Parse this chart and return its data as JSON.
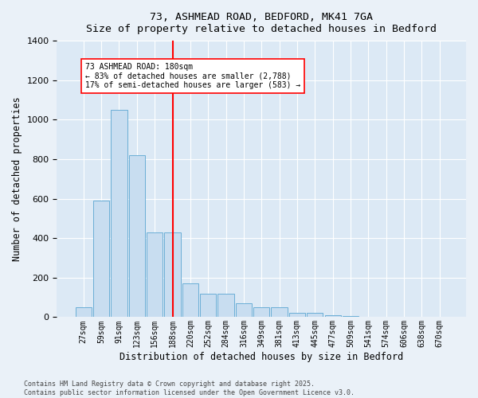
{
  "title_line1": "73, ASHMEAD ROAD, BEDFORD, MK41 7GA",
  "title_line2": "Size of property relative to detached houses in Bedford",
  "xlabel": "Distribution of detached houses by size in Bedford",
  "ylabel": "Number of detached properties",
  "bar_color": "#c8ddf0",
  "bar_edge_color": "#6aaed6",
  "background_color": "#dce9f5",
  "grid_color": "#ffffff",
  "categories": [
    "27sqm",
    "59sqm",
    "91sqm",
    "123sqm",
    "156sqm",
    "188sqm",
    "220sqm",
    "252sqm",
    "284sqm",
    "316sqm",
    "349sqm",
    "381sqm",
    "413sqm",
    "445sqm",
    "477sqm",
    "509sqm",
    "541sqm",
    "574sqm",
    "606sqm",
    "638sqm",
    "670sqm"
  ],
  "values": [
    50,
    590,
    1050,
    820,
    430,
    430,
    170,
    120,
    120,
    70,
    50,
    50,
    20,
    20,
    10,
    5,
    3,
    2,
    1,
    1,
    2
  ],
  "red_line_index": 5,
  "annotation_title": "73 ASHMEAD ROAD: 180sqm",
  "annotation_line1": "← 83% of detached houses are smaller (2,788)",
  "annotation_line2": "17% of semi-detached houses are larger (583) →",
  "ylim": [
    0,
    1400
  ],
  "yticks": [
    0,
    200,
    400,
    600,
    800,
    1000,
    1200,
    1400
  ],
  "footer_line1": "Contains HM Land Registry data © Crown copyright and database right 2025.",
  "footer_line2": "Contains public sector information licensed under the Open Government Licence v3.0.",
  "fig_width": 6.0,
  "fig_height": 5.0,
  "fig_bg": "#eaf1f8"
}
